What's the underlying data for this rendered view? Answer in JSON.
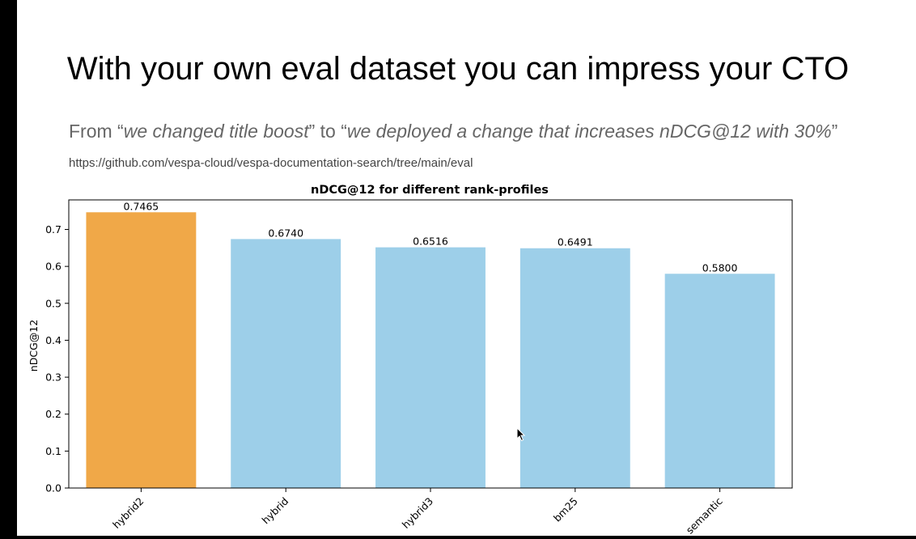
{
  "slide": {
    "title": "With your own eval dataset you can impress your CTO",
    "subtitle_part1": "From “",
    "subtitle_quote1": "we changed title boost",
    "subtitle_part2": "” to “",
    "subtitle_quote2": "we deployed a change that increases nDCG@12 with 30%",
    "subtitle_part3": "” ",
    "subtitle_link": "https://github.com/vespa-cloud/vespa-documentation-search/tree/main/eval"
  },
  "chart_data": {
    "type": "bar",
    "title": "nDCG@12 for different rank-profiles",
    "xlabel": "",
    "ylabel": "nDCG@12",
    "categories": [
      "hybrid2",
      "hybrid",
      "hybrid3",
      "bm25",
      "semantic"
    ],
    "values": [
      0.7465,
      0.674,
      0.6516,
      0.6491,
      0.58
    ],
    "value_labels": [
      "0.7465",
      "0.6740",
      "0.6516",
      "0.6491",
      "0.5800"
    ],
    "colors": [
      "#f0a848",
      "#9dcfe9",
      "#9dcfe9",
      "#9dcfe9",
      "#9dcfe9"
    ],
    "ylim": [
      0,
      0.78
    ],
    "yticks": [
      0.0,
      0.1,
      0.2,
      0.3,
      0.4,
      0.5,
      0.6,
      0.7
    ],
    "ytick_labels": [
      "0.0",
      "0.1",
      "0.2",
      "0.3",
      "0.4",
      "0.5",
      "0.6",
      "0.7"
    ],
    "grid": false
  },
  "icons": {
    "cursor": "mouse-pointer-icon"
  }
}
